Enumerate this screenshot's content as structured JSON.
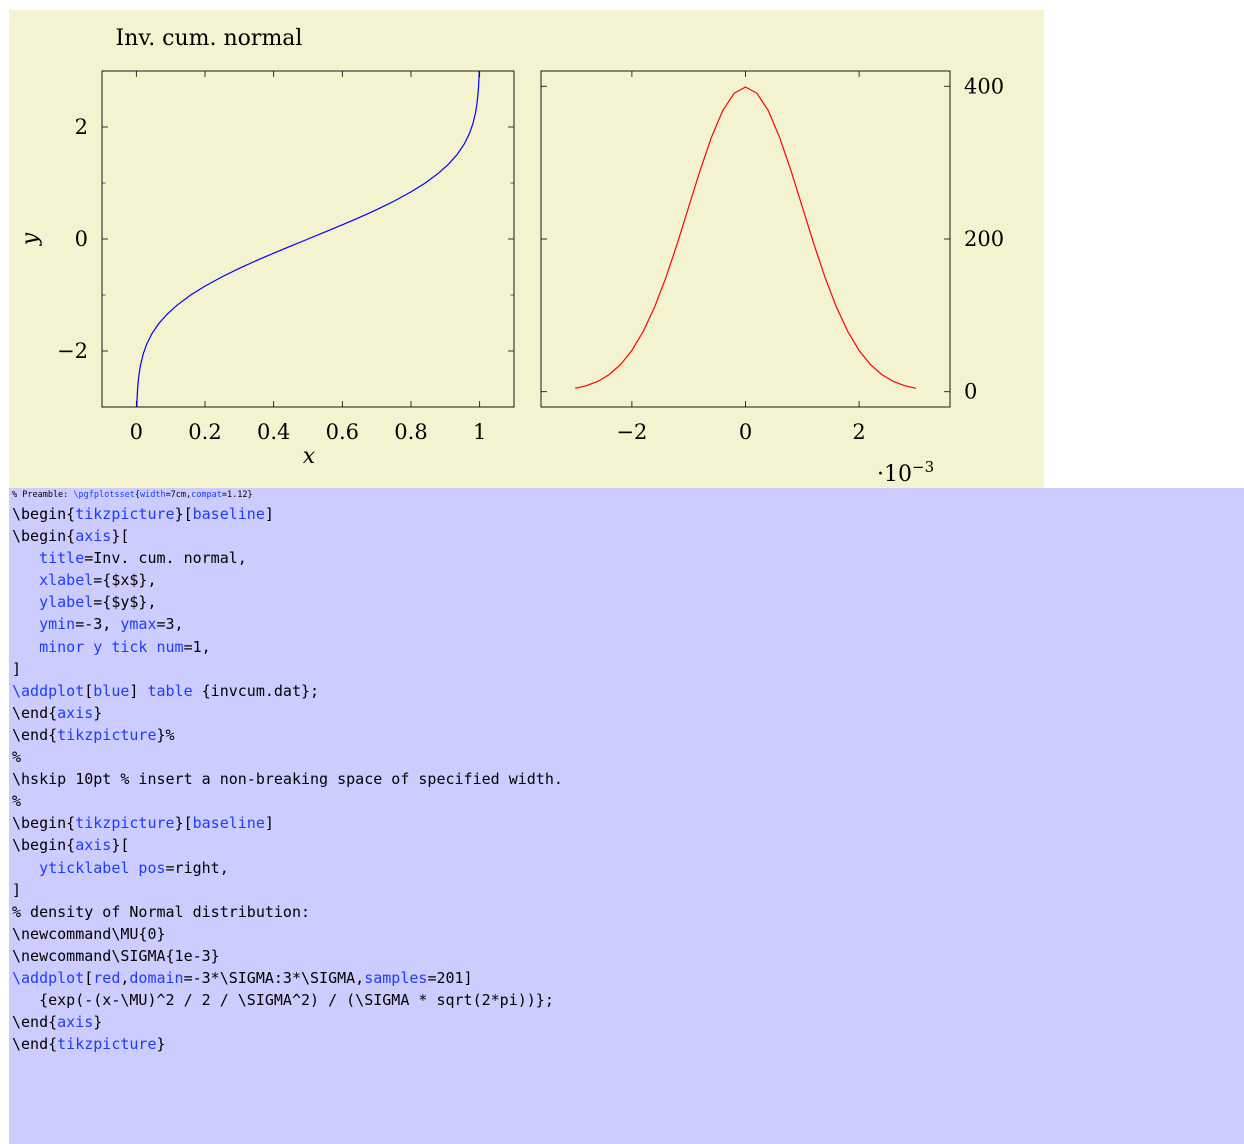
{
  "colors": {
    "figure_background": "#f3f3d0",
    "code_background": "#ccccff",
    "keyword": "#1e3cff",
    "left_curve": "#0000ff",
    "right_curve": "#ff0000"
  },
  "chart_data": [
    {
      "type": "line",
      "title": "Inv. cum. normal",
      "xlabel": "x",
      "ylabel": "y",
      "xlim": [
        -0.1,
        1.1
      ],
      "ylim": [
        -3,
        3
      ],
      "xticks": [
        0,
        0.2,
        0.4,
        0.6,
        0.8,
        1
      ],
      "xtick_labels": [
        "0",
        "0.2",
        "0.4",
        "0.6",
        "0.8",
        "1"
      ],
      "yticks": [
        -2,
        0,
        2
      ],
      "ytick_labels": [
        "−2",
        "0",
        "2"
      ],
      "yminor_ticks": [
        -3,
        -1,
        1,
        3
      ],
      "series": [
        {
          "color": "#0000ff",
          "x": [
            0.00135,
            0.0016,
            0.002,
            0.003,
            0.005,
            0.008,
            0.012,
            0.02,
            0.03,
            0.045,
            0.065,
            0.09,
            0.12,
            0.16,
            0.2,
            0.25,
            0.3,
            0.35,
            0.4,
            0.45,
            0.5,
            0.55,
            0.6,
            0.65,
            0.7,
            0.75,
            0.8,
            0.84,
            0.88,
            0.91,
            0.935,
            0.955,
            0.97,
            0.98,
            0.988,
            0.992,
            0.995,
            0.997,
            0.998,
            0.9984,
            0.99865
          ],
          "y": [
            -3.0,
            -2.948,
            -2.878,
            -2.748,
            -2.576,
            -2.409,
            -2.257,
            -2.054,
            -1.881,
            -1.695,
            -1.514,
            -1.341,
            -1.175,
            -0.994,
            -0.842,
            -0.674,
            -0.524,
            -0.385,
            -0.253,
            -0.126,
            0.0,
            0.126,
            0.253,
            0.385,
            0.524,
            0.674,
            0.842,
            0.994,
            1.175,
            1.341,
            1.514,
            1.695,
            1.881,
            2.054,
            2.257,
            2.409,
            2.576,
            2.748,
            2.878,
            2.948,
            3.0
          ]
        }
      ]
    },
    {
      "type": "line",
      "xlim": [
        -3.6,
        3.6
      ],
      "ylim": [
        -20,
        420
      ],
      "x_scale_label": "·10−3",
      "x_scale_base": "·10",
      "x_scale_exp": "−3",
      "xticks": [
        -2,
        0,
        2
      ],
      "xtick_labels": [
        "−2",
        "0",
        "2"
      ],
      "yticks": [
        0,
        200,
        400
      ],
      "ytick_labels": [
        "0",
        "200",
        "400"
      ],
      "yticklabel_pos": "right",
      "series": [
        {
          "color": "#ff0000",
          "x": [
            -3.0,
            -2.8,
            -2.6,
            -2.4,
            -2.2,
            -2.0,
            -1.8,
            -1.6,
            -1.4,
            -1.2,
            -1.0,
            -0.8,
            -0.6,
            -0.4,
            -0.2,
            0.0,
            0.2,
            0.4,
            0.6,
            0.8,
            1.0,
            1.2,
            1.4,
            1.6,
            1.8,
            2.0,
            2.2,
            2.4,
            2.6,
            2.8,
            3.0
          ],
          "y": [
            4.43,
            7.92,
            13.6,
            22.4,
            35.5,
            54.0,
            79.0,
            110.9,
            149.8,
            194.2,
            242.0,
            289.7,
            333.2,
            368.3,
            391.0,
            398.9,
            391.0,
            368.3,
            333.2,
            289.7,
            242.0,
            194.2,
            149.8,
            110.9,
            79.0,
            54.0,
            35.5,
            22.4,
            13.6,
            7.92,
            4.43
          ]
        }
      ]
    }
  ],
  "code": {
    "preamble": {
      "prefix": "% Preamble: ",
      "cmd": "\\pgfplotsset",
      "b1": "{",
      "k1": "width",
      "v1": "=7cm,",
      "k2": "compat",
      "v2": "=1.12}"
    },
    "l01": {
      "a": "\\begin{",
      "k": "tikzpicture",
      "b": "}[",
      "k2": "baseline",
      "c": "]"
    },
    "l02": {
      "a": "\\begin{",
      "k": "axis",
      "b": "}["
    },
    "l03": {
      "indent": "   ",
      "k": "title",
      "v": "=Inv. cum. normal,"
    },
    "l04": {
      "indent": "   ",
      "k": "xlabel",
      "v": "={$x$},"
    },
    "l05": {
      "indent": "   ",
      "k": "ylabel",
      "v": "={$y$},"
    },
    "l06": {
      "indent": "   ",
      "k": "ymin",
      "v": "=-3, ",
      "k2": "ymax",
      "v2": "=3,"
    },
    "l07": {
      "indent": "   ",
      "k": "minor y tick num",
      "v": "=1,"
    },
    "l08": {
      "t": "]"
    },
    "l09": {
      "k": "\\addplot",
      "a": "[",
      "k2": "blue",
      "b": "] ",
      "k3": "table",
      "c": " {invcum.dat};"
    },
    "l10": {
      "a": "\\end{",
      "k": "axis",
      "b": "}"
    },
    "l11": {
      "a": "\\end{",
      "k": "tikzpicture",
      "b": "}%"
    },
    "l12": {
      "t": "%"
    },
    "l13": {
      "t": "\\hskip 10pt % insert a non-breaking space of specified width."
    },
    "l14": {
      "t": "%"
    },
    "l15": {
      "a": "\\begin{",
      "k": "tikzpicture",
      "b": "}[",
      "k2": "baseline",
      "c": "]"
    },
    "l16": {
      "a": "\\begin{",
      "k": "axis",
      "b": "}["
    },
    "l17": {
      "indent": "   ",
      "k": "yticklabel pos",
      "v": "=right,"
    },
    "l18": {
      "t": "]"
    },
    "l19": {
      "t": "% density of Normal distribution:"
    },
    "l20": {
      "t": "\\newcommand\\MU{0}"
    },
    "l21": {
      "t": "\\newcommand\\SIGMA{1e-3}"
    },
    "l22": {
      "k": "\\addplot",
      "a": "[",
      "k2": "red",
      "b": ",",
      "k3": "domain",
      "c": "=-3*\\SIGMA:3*\\SIGMA,",
      "k4": "samples",
      "d": "=201]"
    },
    "l23": {
      "t": "   {exp(-(x-\\MU)^2 / 2 / \\SIGMA^2) / (\\SIGMA * sqrt(2*pi))};"
    },
    "l24": {
      "a": "\\end{",
      "k": "axis",
      "b": "}"
    },
    "l25": {
      "a": "\\end{",
      "k": "tikzpicture",
      "b": "}"
    }
  }
}
